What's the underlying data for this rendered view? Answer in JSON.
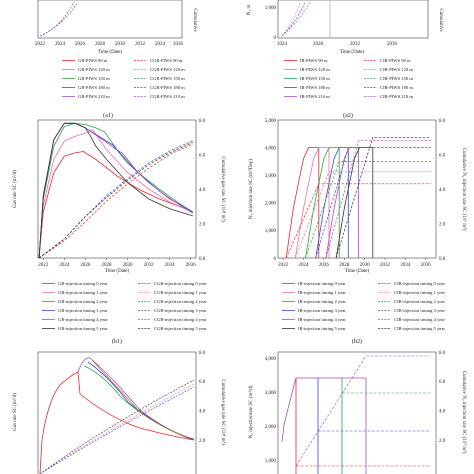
{
  "colors": {
    "red": "#e8262c",
    "pink": "#f06fa7",
    "green": "#2ca34a",
    "blue": "#3b4bd1",
    "purple": "#a64dc9",
    "dark": "#333333",
    "olive": "#b0742a",
    "gray": "#888888",
    "darkred": "#b02020"
  },
  "panels": {
    "a1": {
      "caption": "(a1)",
      "xlabel": "Time (Date)",
      "xticks": [
        "2022",
        "2024",
        "2026",
        "2028",
        "2030",
        "2032",
        "2034",
        "2036"
      ],
      "ylabel_right": "Cumulative",
      "legend": [
        {
          "label": "GR-PIWS 90 m",
          "style": "solid",
          "color": "red"
        },
        {
          "label": "CGR-PIWS 90 m",
          "style": "dash",
          "color": "red"
        },
        {
          "label": "GR-PIWS 120 m",
          "style": "solid",
          "color": "pink"
        },
        {
          "label": "CGR-PIWS 120 m",
          "style": "dash",
          "color": "pink"
        },
        {
          "label": "GR-PIWS 150 m",
          "style": "solid",
          "color": "green"
        },
        {
          "label": "CGR-PIWS 150 m",
          "style": "dash",
          "color": "green"
        },
        {
          "label": "GR-PIWS 180 m",
          "style": "solid",
          "color": "blue"
        },
        {
          "label": "CGR-PIWS 180 m",
          "style": "dash",
          "color": "blue"
        },
        {
          "label": "GR-PIWS 210 m",
          "style": "solid",
          "color": "purple"
        },
        {
          "label": "CGR-PIWS 210 m",
          "style": "dash",
          "color": "purple"
        }
      ]
    },
    "a2": {
      "caption": "(a2)",
      "xlabel": "Time (Date)",
      "xticks": [
        "2024",
        "2028",
        "2032",
        "2036"
      ],
      "yticks": [
        "1,000",
        "0"
      ],
      "ylabel_left": "N₂ in",
      "ylabel_right": "Cumulative",
      "legend": [
        {
          "label": "IR-PIWS 90 m",
          "style": "solid",
          "color": "red"
        },
        {
          "label": "CIR-PIWS 90 m",
          "style": "dash",
          "color": "red"
        },
        {
          "label": "IR-PIWS 120 m",
          "style": "solid",
          "color": "pink"
        },
        {
          "label": "CIR-PIWS 120 m",
          "style": "dash",
          "color": "pink"
        },
        {
          "label": "IR-PIWS 150 m",
          "style": "solid",
          "color": "green"
        },
        {
          "label": "CIR-PIWS 150 m",
          "style": "dash",
          "color": "green"
        },
        {
          "label": "IR-PIWS 180 m",
          "style": "solid",
          "color": "blue"
        },
        {
          "label": "CIR-PIWS 180 m",
          "style": "dash",
          "color": "blue"
        },
        {
          "label": "IR-PIWS 210 m",
          "style": "solid",
          "color": "purple"
        },
        {
          "label": "CIR-PIWS 210 m",
          "style": "dash",
          "color": "purple"
        }
      ]
    },
    "b1": {
      "caption": "(b1)",
      "xlabel": "Time (Date)",
      "ylabel_left": "Gas rate SC (m³/d)",
      "ylabel_right": "Cumulative gas rate SC (10⁸ m³)",
      "xticks": [
        "2022",
        "2024",
        "2026",
        "2028",
        "2030",
        "2032",
        "2034",
        "2036"
      ],
      "yticks_right": [
        "0.0",
        "2.0",
        "4.0",
        "6.0",
        "8.0"
      ],
      "legend": [
        {
          "label": "GR-injection timing 0 year",
          "style": "solid",
          "color": "red"
        },
        {
          "label": "CGR-injection timing 0 year",
          "style": "dash",
          "color": "red"
        },
        {
          "label": "GR-injection timing 1 year",
          "style": "solid",
          "color": "pink"
        },
        {
          "label": "CGR-injection timing 1 year",
          "style": "dash",
          "color": "pink"
        },
        {
          "label": "GR-injection timing 2 year",
          "style": "solid",
          "color": "green"
        },
        {
          "label": "CGR-injection timing 2 year",
          "style": "dash",
          "color": "green"
        },
        {
          "label": "GR-injection timing 3 year",
          "style": "solid",
          "color": "blue"
        },
        {
          "label": "CGR-injection timing 3 year",
          "style": "dash",
          "color": "blue"
        },
        {
          "label": "GR-injection timing 4 year",
          "style": "solid",
          "color": "purple"
        },
        {
          "label": "CGR-injection timing 4 year",
          "style": "dash",
          "color": "purple"
        },
        {
          "label": "GR-injection timing 5 year",
          "style": "solid",
          "color": "dark"
        },
        {
          "label": "CGR-injection timing 5 year",
          "style": "dash",
          "color": "dark"
        }
      ]
    },
    "b2": {
      "caption": "(b2)",
      "xlabel": "Time (Date)",
      "ylabel_left": "N₂ injection rate SC (m³/Day)",
      "ylabel_right": "Cumulative N₂ injection rate SC (10⁷ m³)",
      "xticks": [
        "2022",
        "2024",
        "2026",
        "2028",
        "2030",
        "2032",
        "2034",
        "2036"
      ],
      "yticks": [
        "5,000",
        "4,000",
        "3,000",
        "2,000",
        "1,000",
        "0"
      ],
      "yticks_right": [
        "0.0",
        "2.0",
        "4.0",
        "6.0",
        "8.0"
      ],
      "legend": [
        {
          "label": "IR-injection timing 0 year",
          "style": "solid",
          "color": "red"
        },
        {
          "label": "CIR-injection timing 0 year",
          "style": "dash",
          "color": "red"
        },
        {
          "label": "IR-injection timing 1 year",
          "style": "solid",
          "color": "pink"
        },
        {
          "label": "CIR-injection timing 1 year",
          "style": "dash",
          "color": "pink"
        },
        {
          "label": "IR-injection timing 2 year",
          "style": "solid",
          "color": "green"
        },
        {
          "label": "CIR-injection timing 2 year",
          "style": "dash",
          "color": "green"
        },
        {
          "label": "IR-injection timing 3 year",
          "style": "solid",
          "color": "blue"
        },
        {
          "label": "CIR-injection timing 3 year",
          "style": "dash",
          "color": "blue"
        },
        {
          "label": "IR-injection timing 4 year",
          "style": "solid",
          "color": "purple"
        },
        {
          "label": "CIR-injection timing 4 year",
          "style": "dash",
          "color": "purple"
        },
        {
          "label": "IR-injection timing 5 year",
          "style": "solid",
          "color": "dark"
        },
        {
          "label": "CIR-injection timing 5 year",
          "style": "dash",
          "color": "dark"
        }
      ]
    },
    "c1": {
      "ylabel_left": "Gas rate SC (m³/d)",
      "ylabel_right": "Cumulative gas rate SC (10⁸ m³)",
      "yticks_right": [
        "2.0",
        "4.0",
        "6.0",
        "8.0"
      ]
    },
    "c2": {
      "ylabel_left": "N₂ injectionrate SC (m³/d)",
      "ylabel_right": "Cumulative N₂ injection rate SC (10⁷ m³)",
      "yticks": [
        "4,000",
        "3,000",
        "2,000",
        "1,000"
      ],
      "yticks_right": [
        "2.0",
        "4.0",
        "6.0",
        "8.0"
      ]
    }
  },
  "chart_data": [
    {
      "type": "line",
      "panel": "b1",
      "x_range": [
        2021.5,
        2036.5
      ],
      "y_left_range": [
        0,
        2100
      ],
      "y_right_range": [
        0,
        8
      ],
      "series": [
        {
          "name": "GR-injection timing 0 year",
          "color": "red",
          "axis": "left",
          "x": [
            2021.6,
            2022,
            2023,
            2024,
            2025,
            2025.8,
            2027,
            2029,
            2031,
            2033,
            2035,
            2036.2
          ],
          "y": [
            0,
            700,
            1300,
            1550,
            1600,
            1620,
            1500,
            1250,
            1050,
            900,
            780,
            700
          ]
        },
        {
          "name": "GR-injection timing 1 year",
          "color": "pink",
          "axis": "left",
          "x": [
            2021.6,
            2022,
            2023,
            2024,
            2025,
            2026,
            2026.7,
            2028,
            2030,
            2032,
            2034,
            2036.2
          ],
          "y": [
            0,
            800,
            1500,
            1780,
            1850,
            1900,
            1950,
            1650,
            1300,
            1050,
            850,
            700
          ]
        },
        {
          "name": "GR-injection timing 2 year",
          "color": "green",
          "axis": "left",
          "x": [
            2021.6,
            2022,
            2023,
            2024,
            2025,
            2026,
            2027,
            2027.8,
            2029,
            2031,
            2033,
            2035,
            2036.2
          ],
          "y": [
            0,
            900,
            1700,
            2000,
            2050,
            2030,
            1980,
            1920,
            1650,
            1300,
            1050,
            820,
            700
          ]
        },
        {
          "name": "GR-injection timing 3 year",
          "color": "blue",
          "axis": "left",
          "x": [
            2021.6,
            2022,
            2023,
            2024,
            2025,
            2026,
            2027,
            2028,
            2028.6,
            2030,
            2032,
            2034,
            2036.2
          ],
          "y": [
            0,
            950,
            1800,
            2050,
            2050,
            1980,
            1880,
            1780,
            1720,
            1450,
            1150,
            900,
            700
          ]
        },
        {
          "name": "GR-injection timing 4 year",
          "color": "purple",
          "axis": "left",
          "x": [
            2021.6,
            2022,
            2023,
            2024,
            2025,
            2026,
            2027,
            2028,
            2029,
            2029.5,
            2031,
            2033,
            2035,
            2036.2
          ],
          "y": [
            0,
            950,
            1800,
            2050,
            2050,
            1980,
            1870,
            1760,
            1640,
            1600,
            1300,
            1020,
            800,
            680
          ]
        },
        {
          "name": "GR-injection timing 5 year",
          "color": "dark",
          "axis": "left",
          "x": [
            2021.6,
            2022,
            2023,
            2024,
            2025,
            2026,
            2026.5,
            2027,
            2028,
            2030,
            2032,
            2034,
            2036.2
          ],
          "y": [
            0,
            950,
            1800,
            2050,
            2050,
            1980,
            1850,
            1700,
            1500,
            1150,
            900,
            750,
            640
          ]
        },
        {
          "name": "CGR-injection timing 0 year",
          "color": "red",
          "axis": "right",
          "dash": true,
          "x": [
            2021.6,
            2024,
            2026,
            2028,
            2030,
            2032,
            2034,
            2036.2
          ],
          "y": [
            0,
            1.0,
            2.1,
            3.3,
            4.3,
            5.2,
            6.0,
            6.6
          ]
        },
        {
          "name": "CGR-injection timing 3 year",
          "color": "blue",
          "axis": "right",
          "dash": true,
          "x": [
            2021.6,
            2024,
            2026,
            2028,
            2030,
            2032,
            2034,
            2036.2
          ],
          "y": [
            0,
            1.1,
            2.4,
            3.6,
            4.6,
            5.5,
            6.2,
            6.8
          ]
        },
        {
          "name": "CGR-injection timing 5 year",
          "color": "dark",
          "axis": "right",
          "dash": true,
          "x": [
            2021.6,
            2024,
            2026,
            2028,
            2030,
            2032,
            2034,
            2036.2
          ],
          "y": [
            0,
            1.1,
            2.4,
            3.5,
            4.5,
            5.4,
            6.1,
            6.7
          ]
        }
      ]
    },
    {
      "type": "line",
      "panel": "b2",
      "x_range": [
        2021.5,
        2037
      ],
      "y_left_range": [
        0,
        5000
      ],
      "y_right_range": [
        0,
        8
      ],
      "series": [
        {
          "name": "IR-injection timing 0 year",
          "color": "red",
          "axis": "left",
          "x": [
            2022.3,
            2023,
            2024,
            2024.5,
            2025.5,
            2025.5
          ],
          "y": [
            0,
            1800,
            3600,
            4000,
            4000,
            0
          ]
        },
        {
          "name": "IR-injection timing 1 year",
          "color": "pink",
          "axis": "left",
          "x": [
            2023.2,
            2024,
            2025,
            2025.5,
            2026.5,
            2026.5
          ],
          "y": [
            0,
            1800,
            3600,
            4000,
            4000,
            0
          ]
        },
        {
          "name": "IR-injection timing 2 year",
          "color": "green",
          "axis": "left",
          "x": [
            2024.2,
            2025,
            2026,
            2026.5,
            2027.5,
            2027.5
          ],
          "y": [
            0,
            1800,
            3600,
            4000,
            4000,
            0
          ]
        },
        {
          "name": "IR-injection timing 3 year",
          "color": "blue",
          "axis": "left",
          "x": [
            2025.2,
            2026,
            2027,
            2027.5,
            2028.4,
            2028.4
          ],
          "y": [
            0,
            1800,
            3600,
            4000,
            4000,
            0
          ]
        },
        {
          "name": "IR-injection timing 4 year",
          "color": "purple",
          "axis": "left",
          "x": [
            2026.2,
            2027,
            2028,
            2028.5,
            2029.4,
            2029.4
          ],
          "y": [
            0,
            1800,
            3600,
            4000,
            4000,
            0
          ]
        },
        {
          "name": "IR-injection timing 5 year",
          "color": "dark",
          "axis": "left",
          "x": [
            2027.2,
            2028,
            2029,
            2029.5,
            2030.8,
            2030.8
          ],
          "y": [
            0,
            1800,
            3600,
            4000,
            4000,
            0
          ]
        },
        {
          "name": "CIR-injection timing 0 year",
          "color": "red",
          "axis": "right",
          "dash": true,
          "x": [
            2022.3,
            2025.5,
            2036.5
          ],
          "y": [
            0,
            4.3,
            4.3
          ]
        },
        {
          "name": "CIR-injection timing 1 year",
          "color": "pink",
          "axis": "right",
          "dash": true,
          "x": [
            2023.2,
            2026.5,
            2036.5
          ],
          "y": [
            0,
            5.0,
            5.0
          ]
        },
        {
          "name": "CIR-injection timing 2 year",
          "color": "green",
          "axis": "right",
          "dash": true,
          "x": [
            2024.2,
            2027.5,
            2036.5
          ],
          "y": [
            0,
            5.6,
            5.6
          ]
        },
        {
          "name": "CIR-injection timing 3 year",
          "color": "blue",
          "axis": "right",
          "dash": true,
          "x": [
            2025.2,
            2028.4,
            2036.5
          ],
          "y": [
            0,
            6.4,
            6.4
          ]
        },
        {
          "name": "CIR-injection timing 4 year",
          "color": "purple",
          "axis": "right",
          "dash": true,
          "x": [
            2026.2,
            2029.4,
            2036.5
          ],
          "y": [
            0,
            6.8,
            6.8
          ]
        },
        {
          "name": "CIR-injection timing 5 year",
          "color": "dark",
          "axis": "right",
          "dash": true,
          "x": [
            2027.2,
            2030.8,
            2036.5
          ],
          "y": [
            0,
            7.0,
            7.0
          ]
        }
      ]
    }
  ]
}
